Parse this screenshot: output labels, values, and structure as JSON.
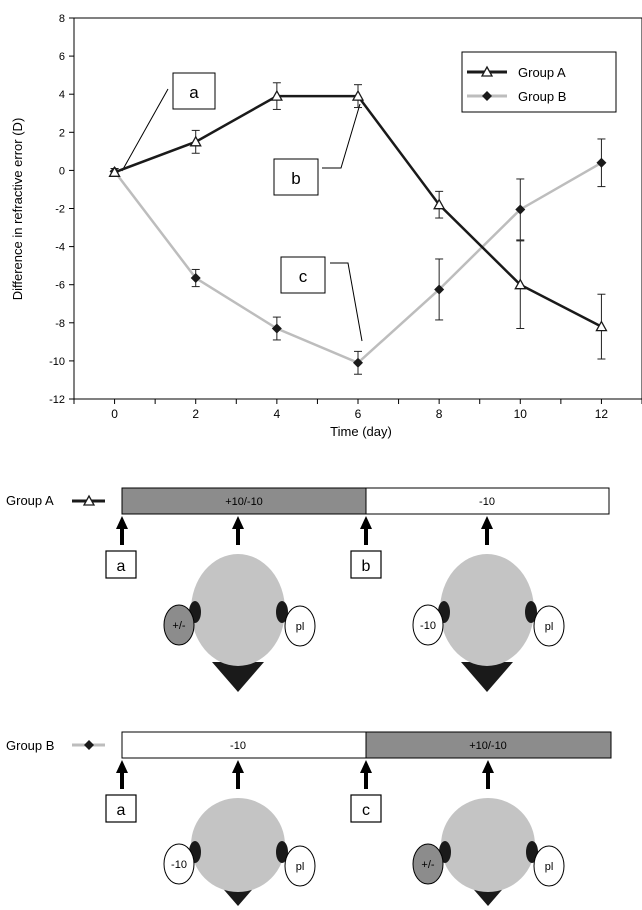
{
  "chart_data": {
    "type": "line",
    "ylabel": "Difference in refractive error (D)",
    "xlabel": "Time (day)",
    "xlim": [
      -1,
      13
    ],
    "ylim": [
      -12,
      8
    ],
    "x_ticks": [
      "0",
      "2",
      "4",
      "6",
      "8",
      "10",
      "12"
    ],
    "y_ticks": [
      "8",
      "6",
      "4",
      "2",
      "0",
      "-2",
      "-4",
      "-6",
      "-8",
      "-10",
      "-12"
    ],
    "legend_position": "top-right",
    "series": [
      {
        "name": "Group A",
        "marker": "open-triangle",
        "color": "#1a1a1a",
        "x": [
          0,
          2,
          4,
          6,
          8,
          10,
          12
        ],
        "y": [
          -0.1,
          1.5,
          3.9,
          3.9,
          -1.8,
          -6.0,
          -8.2
        ],
        "err": [
          0.2,
          0.6,
          0.7,
          0.6,
          0.7,
          2.3,
          1.7
        ]
      },
      {
        "name": "Group B",
        "marker": "filled-diamond",
        "color": "#bdbdbd",
        "x": [
          0,
          2,
          4,
          6,
          8,
          10,
          12
        ],
        "y": [
          -0.05,
          -5.65,
          -8.3,
          -10.1,
          -6.25,
          -2.05,
          0.4
        ],
        "err": [
          0.15,
          0.45,
          0.6,
          0.6,
          1.6,
          1.6,
          1.25
        ]
      }
    ],
    "callouts": [
      "a",
      "b",
      "c"
    ]
  },
  "schedule": {
    "group_a": {
      "label": "Group A",
      "phase1": {
        "label": "+10/-10",
        "color": "#8c8c8c"
      },
      "phase2": {
        "label": "-10",
        "color": "#ffffff"
      },
      "markers": [
        "a",
        "b"
      ],
      "head1": {
        "left_lens": "+/-",
        "right_lens": "pl",
        "left_lens_color": "#8c8c8c"
      },
      "head2": {
        "left_lens": "-10",
        "right_lens": "pl",
        "left_lens_color": "#ffffff"
      }
    },
    "group_b": {
      "label": "Group B",
      "phase1": {
        "label": "-10",
        "color": "#ffffff"
      },
      "phase2": {
        "label": "+10/-10",
        "color": "#8c8c8c"
      },
      "markers": [
        "a",
        "c"
      ],
      "head1": {
        "left_lens": "-10",
        "right_lens": "pl",
        "left_lens_color": "#ffffff"
      },
      "head2": {
        "left_lens": "+/-",
        "right_lens": "pl",
        "left_lens_color": "#8c8c8c"
      }
    }
  }
}
